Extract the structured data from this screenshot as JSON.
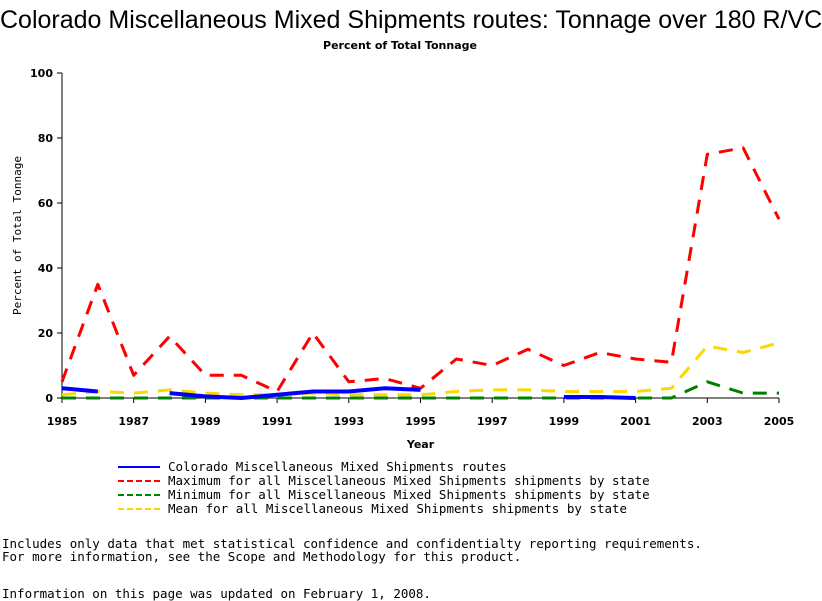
{
  "chart_data": {
    "type": "line",
    "title": "Colorado Miscellaneous Mixed Shipments routes: Tonnage over 180 R/VC",
    "subtitle": "Percent of Total Tonnage",
    "xlabel": "Year",
    "ylabel": "Percent of Total Tonnage",
    "xlim": [
      1985,
      2005
    ],
    "ylim": [
      0,
      100
    ],
    "x_ticks": [
      "1985",
      "1987",
      "1989",
      "1991",
      "1993",
      "1995",
      "1997",
      "1999",
      "2001",
      "2003",
      "2005"
    ],
    "y_ticks": [
      "0",
      "20",
      "40",
      "60",
      "80",
      "100"
    ],
    "grid": false,
    "series": [
      {
        "name": "Colorado Miscellaneous Mixed Shipments routes",
        "color": "#0000ff",
        "style": "solid",
        "segments": [
          [
            [
              1985,
              3
            ],
            [
              1986,
              2
            ]
          ],
          [
            [
              1988,
              1.5
            ],
            [
              1989,
              0.5
            ],
            [
              1990,
              0
            ],
            [
              1991,
              1
            ],
            [
              1992,
              2
            ],
            [
              1993,
              2
            ],
            [
              1994,
              3
            ],
            [
              1995,
              2.5
            ]
          ],
          [
            [
              1999,
              0.3
            ],
            [
              2000,
              0.3
            ],
            [
              2001,
              0
            ]
          ]
        ]
      },
      {
        "name": "Maximum for all Miscellaneous Mixed Shipments shipments by state",
        "color": "#ff0000",
        "style": "dashed",
        "segments": [
          [
            [
              1985,
              5
            ],
            [
              1986,
              35
            ],
            [
              1987,
              7
            ],
            [
              1988,
              19
            ],
            [
              1989,
              7
            ],
            [
              1990,
              7
            ],
            [
              1991,
              2
            ],
            [
              1992,
              20
            ],
            [
              1993,
              5
            ],
            [
              1994,
              6
            ],
            [
              1995,
              3
            ],
            [
              1996,
              12
            ],
            [
              1997,
              10
            ],
            [
              1998,
              15
            ],
            [
              1999,
              10
            ],
            [
              2000,
              14
            ],
            [
              2001,
              12
            ],
            [
              2002,
              11
            ],
            [
              2003,
              75
            ],
            [
              2004,
              77
            ],
            [
              2005,
              55
            ]
          ]
        ]
      },
      {
        "name": "Minimum for all Miscellaneous Mixed Shipments shipments by state",
        "color": "#008000",
        "style": "dashed",
        "segments": [
          [
            [
              1985,
              0
            ],
            [
              1986,
              0
            ],
            [
              1987,
              0
            ],
            [
              1988,
              0
            ],
            [
              1989,
              0
            ],
            [
              1990,
              0
            ],
            [
              1991,
              0
            ],
            [
              1992,
              0
            ],
            [
              1993,
              0
            ],
            [
              1994,
              0
            ],
            [
              1995,
              0
            ],
            [
              1996,
              0
            ],
            [
              1997,
              0
            ],
            [
              1998,
              0
            ],
            [
              1999,
              0
            ],
            [
              2000,
              0
            ],
            [
              2001,
              0
            ],
            [
              2002,
              0
            ],
            [
              2003,
              5
            ],
            [
              2004,
              1.5
            ],
            [
              2005,
              1.5
            ]
          ]
        ]
      },
      {
        "name": "Mean for all Miscellaneous Mixed Shipments shipments by state",
        "color": "#ffd700",
        "style": "dashed",
        "segments": [
          [
            [
              1985,
              1
            ],
            [
              1986,
              2
            ],
            [
              1987,
              1.5
            ],
            [
              1988,
              2.5
            ],
            [
              1989,
              1.5
            ],
            [
              1990,
              1
            ],
            [
              1991,
              1
            ],
            [
              1992,
              1.5
            ],
            [
              1993,
              1
            ],
            [
              1994,
              1
            ],
            [
              1995,
              1
            ],
            [
              1996,
              2
            ],
            [
              1997,
              2.5
            ],
            [
              1998,
              2.5
            ],
            [
              1999,
              2
            ],
            [
              2000,
              2
            ],
            [
              2001,
              2
            ],
            [
              2002,
              3
            ],
            [
              2003,
              16
            ],
            [
              2004,
              14
            ],
            [
              2005,
              17
            ]
          ]
        ]
      }
    ],
    "legend_position": "bottom"
  },
  "footnotes": {
    "line1": "Includes only data that met statistical confidence and confidentialty reporting requirements.",
    "line2": "For more information, see the Scope and Methodology for this product.",
    "line3": "Information on this page was updated on February 1, 2008."
  }
}
